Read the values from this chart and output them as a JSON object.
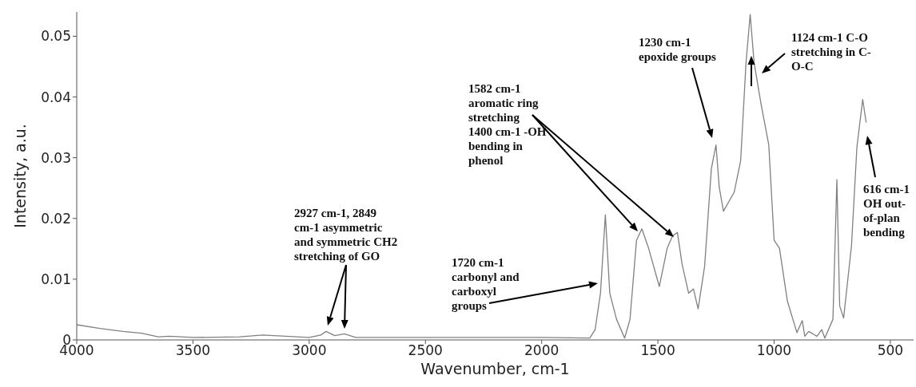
{
  "chart_data": {
    "type": "line",
    "xlabel": "Wavenumber, cm-1",
    "ylabel": "Intensity, a.u.",
    "xlim": [
      4000,
      400
    ],
    "xticks": [
      4000,
      3500,
      3000,
      2500,
      2000,
      1500,
      1000,
      500
    ],
    "ylim": [
      0,
      0.054
    ],
    "yticks": [
      0,
      0.01,
      0.02,
      0.03,
      0.04,
      0.05
    ],
    "grid": false,
    "legend": false,
    "marker": "none",
    "line_style": "solid",
    "series": [
      {
        "color": "#808080",
        "x": [
          4000,
          3900,
          3800,
          3720,
          3650,
          3600,
          3500,
          3300,
          3200,
          3100,
          3000,
          2950,
          2927,
          2890,
          2849,
          2800,
          2500,
          2000,
          1800,
          1793,
          1770,
          1747,
          1726,
          1707,
          1678,
          1643,
          1620,
          1592,
          1569,
          1540,
          1494,
          1460,
          1437,
          1416,
          1396,
          1368,
          1347,
          1327,
          1299,
          1270,
          1250,
          1236,
          1218,
          1172,
          1144,
          1121,
          1103,
          1086,
          1057,
          1023,
          1000,
          977,
          943,
          902,
          879,
          868,
          851,
          816,
          795,
          782,
          747,
          730,
          718,
          701,
          667,
          644,
          619,
          604
        ],
        "values": [
          0.0025,
          0.0019,
          0.0014,
          0.0011,
          0.0005,
          0.0006,
          0.0004,
          0.0005,
          0.0008,
          0.0006,
          0.0004,
          0.0008,
          0.0014,
          0.0007,
          0.001,
          0.0004,
          0.0004,
          0.0004,
          0.0003,
          0.0003,
          0.0017,
          0.0077,
          0.0206,
          0.0077,
          0.0034,
          0.0003,
          0.0034,
          0.0164,
          0.0183,
          0.0151,
          0.0088,
          0.0151,
          0.0171,
          0.0177,
          0.0125,
          0.0077,
          0.0084,
          0.0051,
          0.0121,
          0.0282,
          0.0321,
          0.0251,
          0.0212,
          0.0243,
          0.0295,
          0.0456,
          0.0536,
          0.0456,
          0.039,
          0.0321,
          0.0164,
          0.0151,
          0.0064,
          0.0012,
          0.0032,
          0.0006,
          0.0014,
          0.0006,
          0.0017,
          0.0003,
          0.0034,
          0.0264,
          0.0056,
          0.0036,
          0.0156,
          0.0317,
          0.0396,
          0.0358
        ]
      }
    ],
    "annotations": [
      "2927 cm-1, 2849\ncm-1 asymmetric\nand symmetric CH2\nstretching of GO",
      "1720 cm-1\ncarbonyl and\ncarboxyl\ngroups",
      "1582 cm-1\naromatic ring\nstretching\n1400 cm-1 -OH\nbending in\nphenol",
      "1230 cm-1\nepoxide groups",
      "1124 cm-1 C-O\nstretching in C-\nO-C",
      "616 cm-1\nOH out-\nof-plan\nbending"
    ]
  }
}
